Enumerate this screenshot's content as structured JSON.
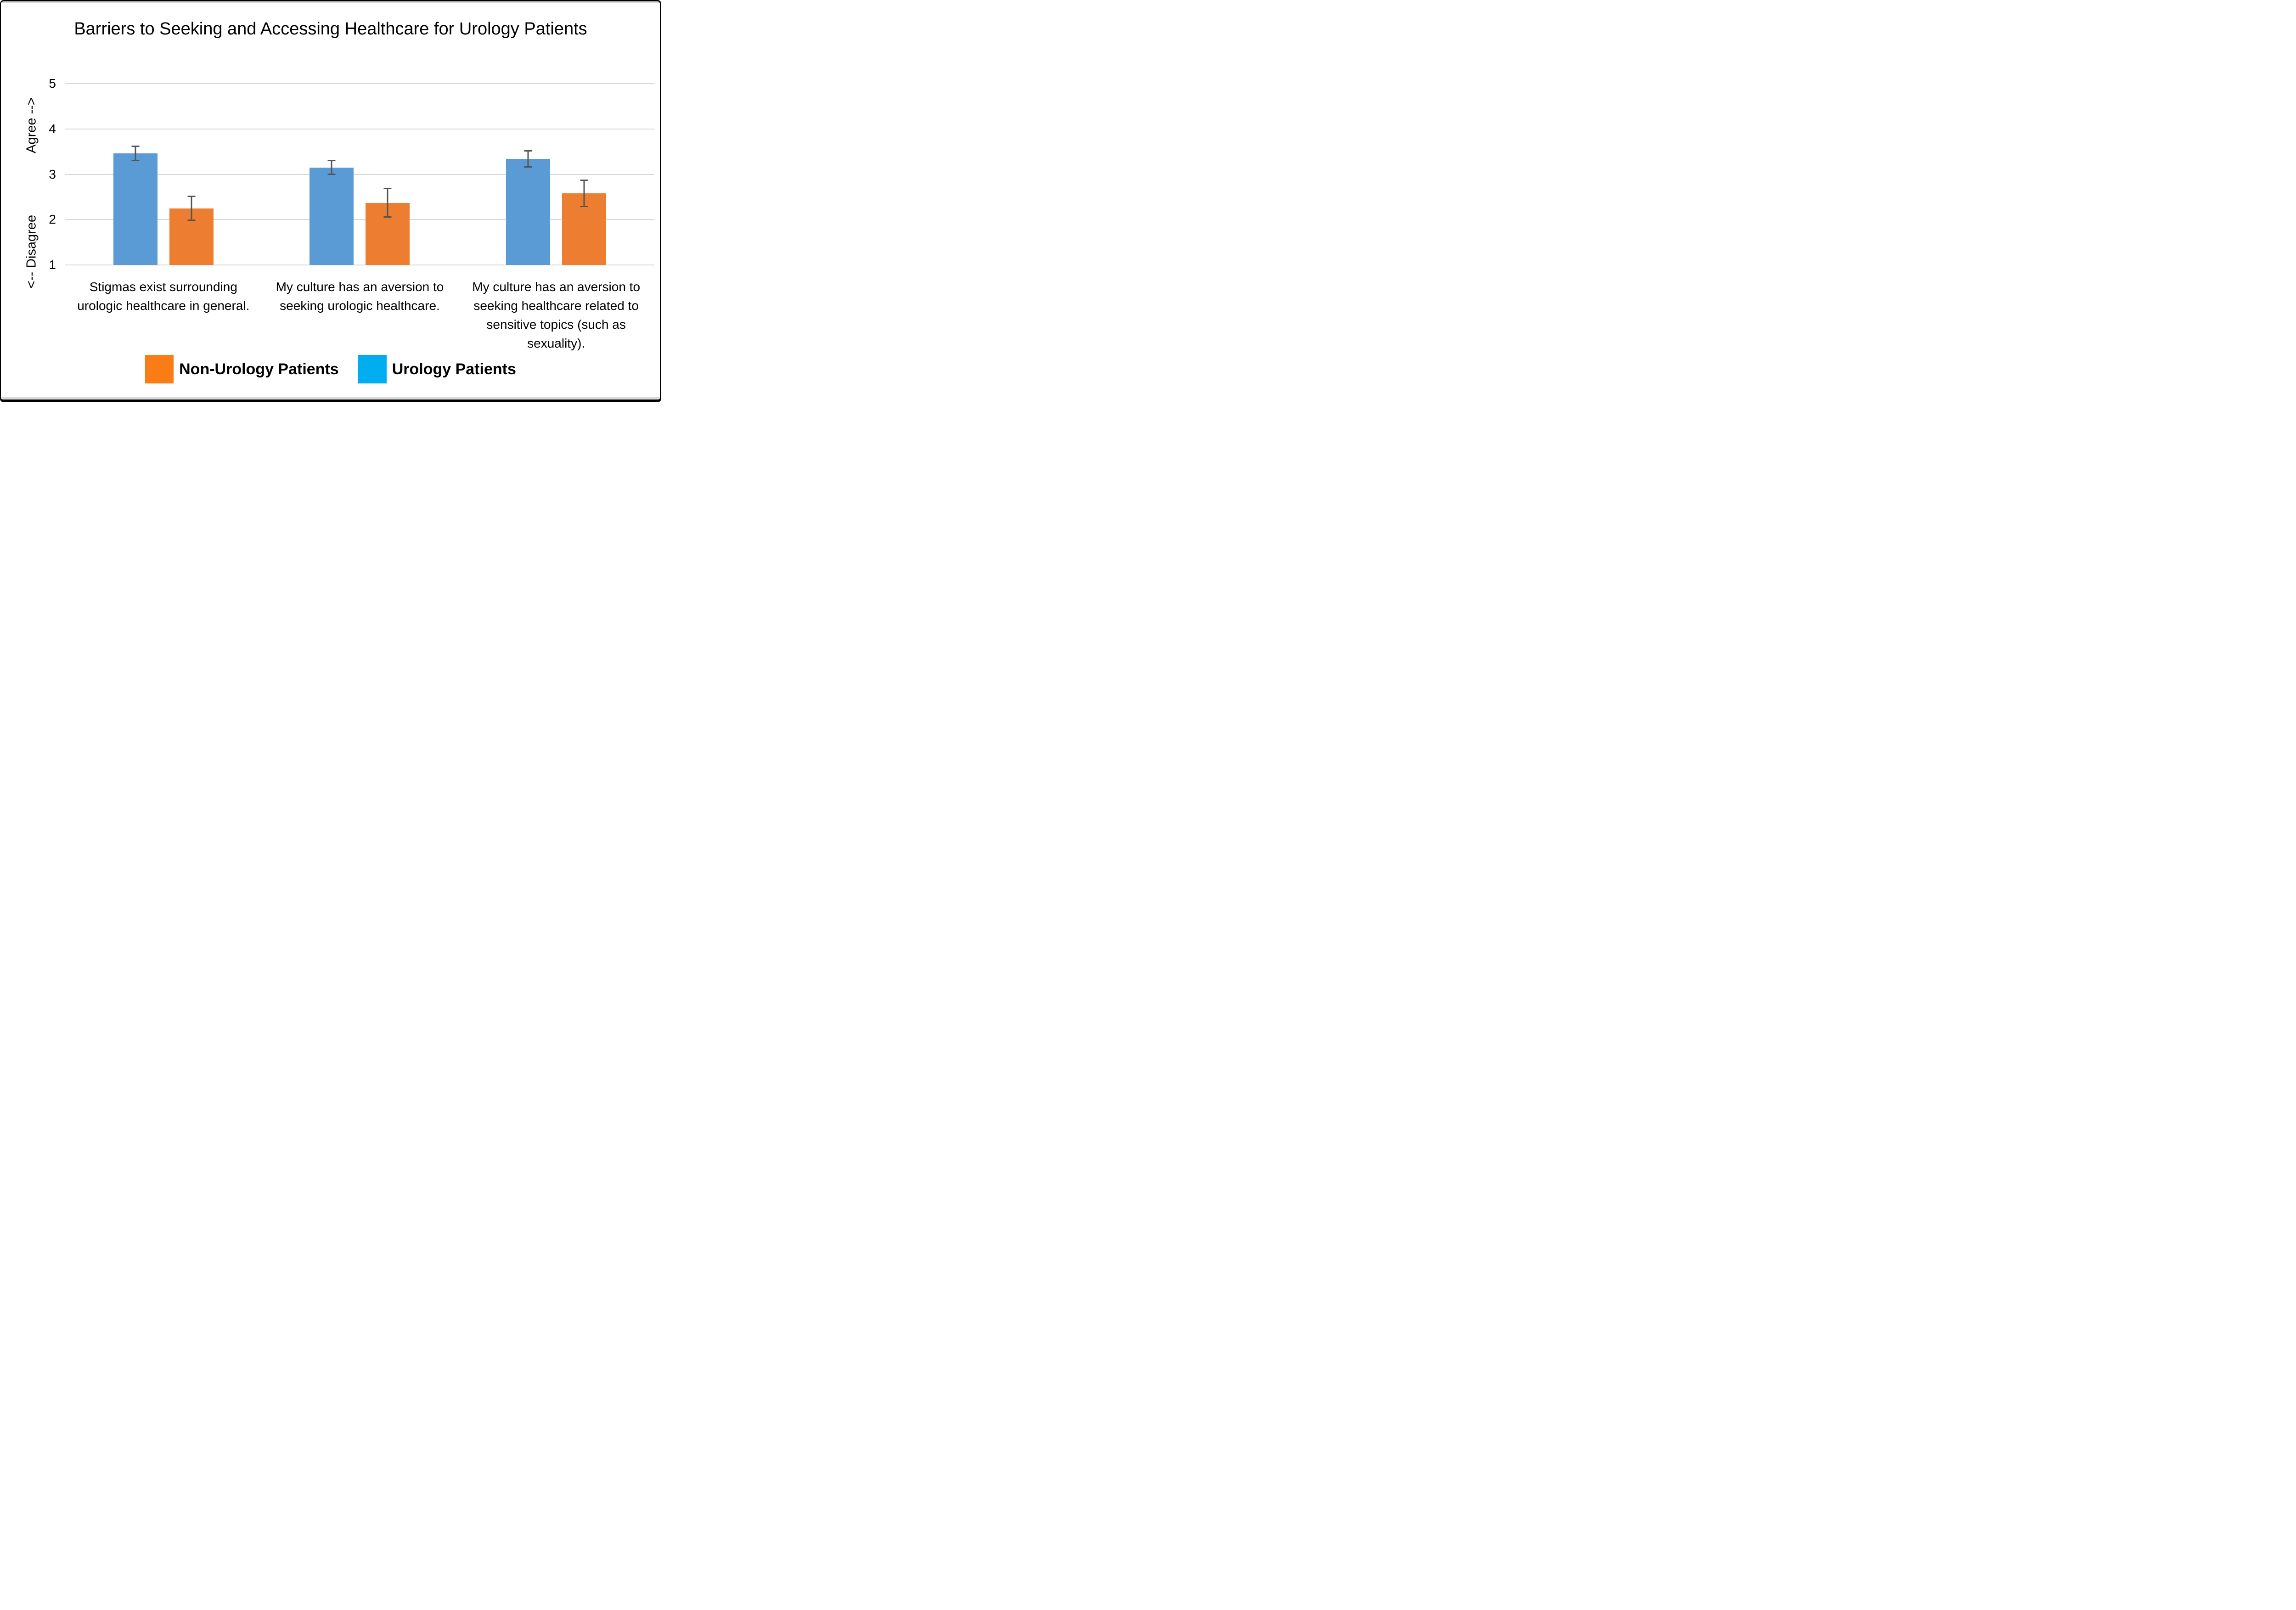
{
  "frame": {
    "background": "#FFFFFF",
    "border_color": "#000000",
    "edge_strip_color": "#D9D9D9"
  },
  "title": "Barriers to Seeking and Accessing Healthcare for Urology Patients",
  "y_axis": {
    "label_top": "Agree -->",
    "label_bottom": "<-- Disagree",
    "ticks": [
      "5",
      "4",
      "3",
      "2",
      "1"
    ]
  },
  "legend": {
    "items": [
      {
        "label": "Non-Urology Patients",
        "swatch_color": "#F97C17"
      },
      {
        "label": "Urology Patients",
        "swatch_color": "#00AEEF"
      }
    ]
  },
  "chart_data": {
    "type": "bar",
    "title": "Barriers to Seeking and Accessing Healthcare for Urology Patients",
    "categories": [
      "Stigmas exist surrounding urologic healthcare in general.",
      "My culture has an aversion to seeking urologic healthcare.",
      "My culture has an aversion to seeking healthcare related to sensitive topics (such as sexuality)."
    ],
    "series": [
      {
        "name": "Urology Patients",
        "color": "#5B9BD5",
        "values": [
          3.46,
          3.15,
          3.34
        ],
        "error": [
          0.17,
          0.17,
          0.19
        ]
      },
      {
        "name": "Non-Urology Patients",
        "color": "#ED7D31",
        "values": [
          2.25,
          2.37,
          2.58
        ],
        "error": [
          0.28,
          0.33,
          0.3
        ]
      }
    ],
    "ylim": [
      1,
      5
    ],
    "yticks": [
      1,
      2,
      3,
      4,
      5
    ],
    "bar_baseline": 1,
    "grid": true,
    "gridline_color": "#D9D9D9",
    "error_bar_color": "#545454",
    "ylabel_top": "Agree -->",
    "ylabel_bottom": "<-- Disagree",
    "legend_position": "bottom"
  }
}
